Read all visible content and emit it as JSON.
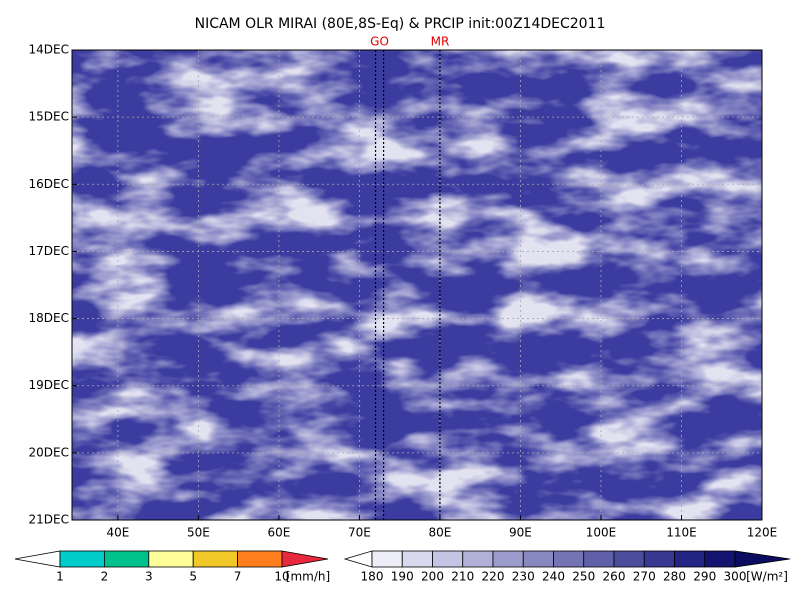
{
  "chart_data": {
    "type": "hovmoller",
    "title": "NICAM OLR MIRAI (80E,8S-Eq) & PRCIP init:00Z14DEC2011",
    "xlim": [
      34.3,
      120
    ],
    "xticks": [
      {
        "value": 40,
        "label": "40E"
      },
      {
        "value": 50,
        "label": "50E"
      },
      {
        "value": 60,
        "label": "60E"
      },
      {
        "value": 70,
        "label": "70E"
      },
      {
        "value": 80,
        "label": "80E"
      },
      {
        "value": 90,
        "label": "90E"
      },
      {
        "value": 100,
        "label": "100E"
      },
      {
        "value": 110,
        "label": "110E"
      },
      {
        "value": 120,
        "label": "120E"
      }
    ],
    "ylim": [
      14,
      21
    ],
    "yticks": [
      {
        "value": 14,
        "label": "14DEC"
      },
      {
        "value": 15,
        "label": "15DEC"
      },
      {
        "value": 16,
        "label": "16DEC"
      },
      {
        "value": 17,
        "label": "17DEC"
      },
      {
        "value": 18,
        "label": "18DEC"
      },
      {
        "value": 19,
        "label": "19DEC"
      },
      {
        "value": 20,
        "label": "20DEC"
      },
      {
        "value": 21,
        "label": "21DEC"
      }
    ],
    "grid": true,
    "markers": [
      {
        "label": "GO",
        "x": [
          72,
          73
        ]
      },
      {
        "label": "MR",
        "x": [
          80
        ]
      }
    ],
    "colorbars": [
      {
        "levels": [
          1,
          2,
          3,
          5,
          7,
          10
        ],
        "unit": "[mm/h]",
        "colors": [
          "#00cccc",
          "#00c08c",
          "#ffff99",
          "#f0c828",
          "#ff7f1e"
        ],
        "under_color": "#ffffff",
        "over_color": "#e8283c"
      },
      {
        "levels": [
          180,
          190,
          200,
          210,
          220,
          230,
          240,
          250,
          260,
          270,
          280,
          290,
          300
        ],
        "unit": "[W/m²]",
        "colors": [
          "#eeeef8",
          "#d8d8ee",
          "#c4c4e4",
          "#b0b0d8",
          "#9c9ccc",
          "#8888c0",
          "#7474b4",
          "#6060a8",
          "#4c4c9c",
          "#383890",
          "#242484",
          "#141470"
        ],
        "under_color": "#ffffff",
        "over_color": "#0c0c60"
      }
    ]
  }
}
